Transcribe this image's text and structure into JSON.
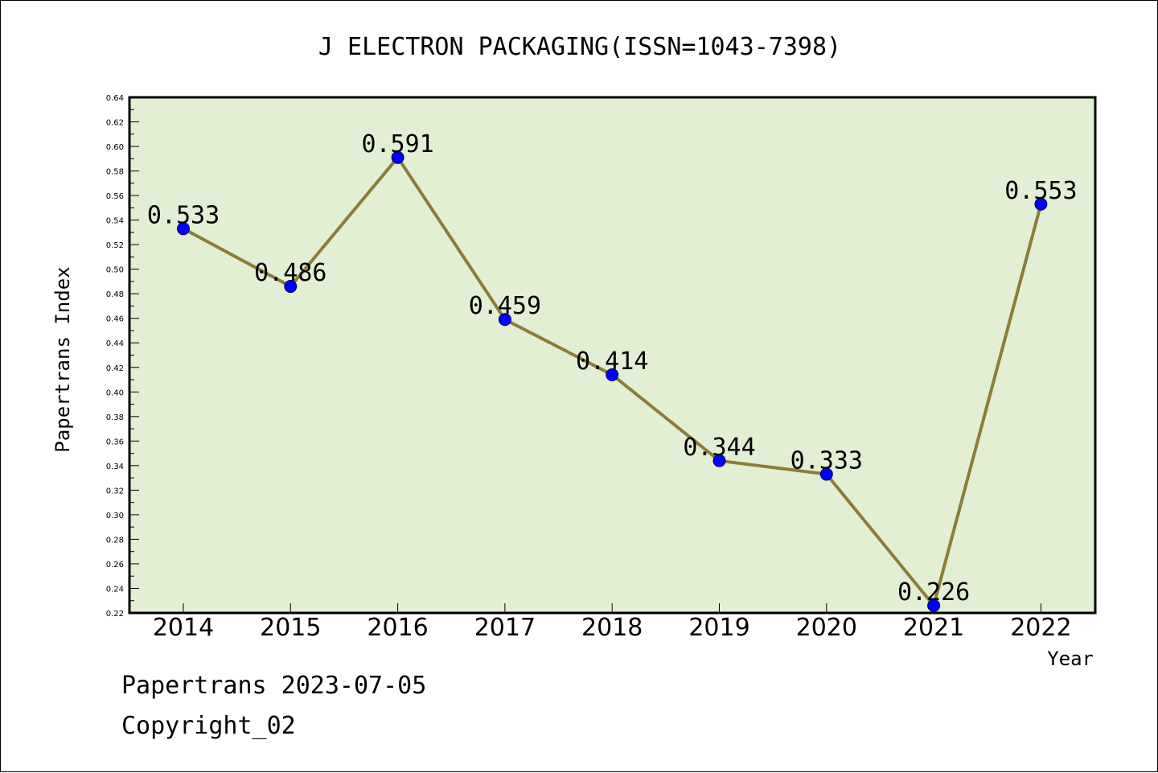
{
  "chart_data": {
    "type": "line",
    "title": "J ELECTRON PACKAGING(ISSN=1043-7398)",
    "xlabel": "Year",
    "ylabel": "Papertrans Index",
    "categories": [
      "2014",
      "2015",
      "2016",
      "2017",
      "2018",
      "2019",
      "2020",
      "2021",
      "2022"
    ],
    "series": [
      {
        "values": [
          0.533,
          0.486,
          0.591,
          0.459,
          0.414,
          0.344,
          0.333,
          0.226,
          0.553
        ],
        "labels": [
          "0.533",
          "0.486",
          "0.591",
          "0.459",
          "0.414",
          "0.344",
          "0.333",
          "0.226",
          "0.553"
        ]
      }
    ],
    "ylim": [
      0.22,
      0.64
    ],
    "yticks": [
      "0.22",
      "0.24",
      "0.26",
      "0.28",
      "0.30",
      "0.32",
      "0.34",
      "0.36",
      "0.38",
      "0.40",
      "0.42",
      "0.44",
      "0.46",
      "0.48",
      "0.50",
      "0.52",
      "0.54",
      "0.56",
      "0.58",
      "0.60",
      "0.62",
      "0.64"
    ],
    "grid": false,
    "colors": {
      "plot_background": "#e2efd5",
      "line": "#8b7d3a",
      "marker": "#0000ff"
    }
  },
  "footer": {
    "date_line": "Papertrans 2023-07-05",
    "copyright": "Copyright_02"
  }
}
